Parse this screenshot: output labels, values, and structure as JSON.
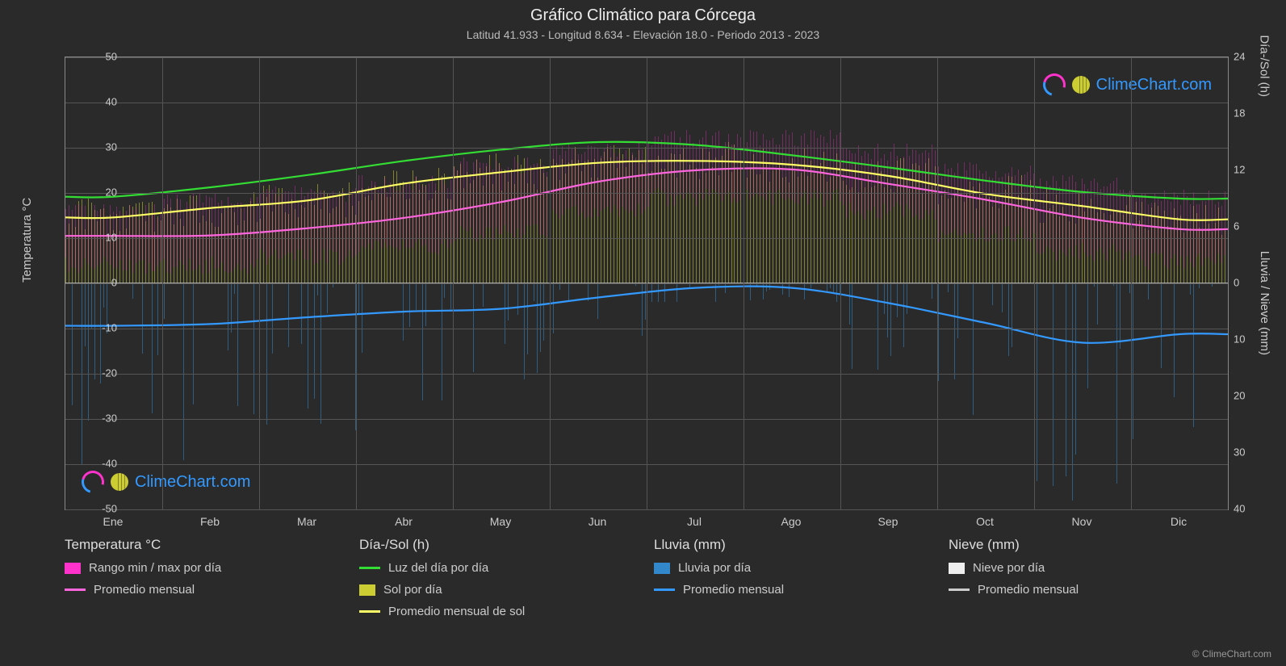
{
  "title": "Gráfico Climático para Córcega",
  "subtitle": "Latitud 41.933 - Longitud 8.634 - Elevación 18.0 - Periodo 2013 - 2023",
  "watermark_text": "ClimeChart.com",
  "copyright": "© ClimeChart.com",
  "axes": {
    "left_label": "Temperatura °C",
    "right_label_top": "Día-/Sol (h)",
    "right_label_bottom": "Lluvia / Nieve (mm)",
    "left_min": -50,
    "left_max": 50,
    "left_step": 10,
    "right_top_min": 0,
    "right_top_max": 24,
    "right_top_step": 6,
    "right_bottom_min": 0,
    "right_bottom_max": 40,
    "right_bottom_step": 10,
    "months": [
      "Ene",
      "Feb",
      "Mar",
      "Abr",
      "May",
      "Jun",
      "Jul",
      "Ago",
      "Sep",
      "Oct",
      "Nov",
      "Dic"
    ]
  },
  "colors": {
    "bg": "#2a2a2a",
    "grid": "#555555",
    "border": "#888888",
    "text": "#cccccc",
    "title_text": "#eeeeee",
    "temp_range": "#ff33cc",
    "temp_avg": "#ff66dd",
    "daylight": "#33dd33",
    "sun_bar": "#cccc33",
    "sun_avg": "#ffff66",
    "rain_bar": "#3388cc",
    "rain_avg": "#3399ff",
    "snow_bar": "#eeeeee",
    "snow_avg": "#cccccc",
    "brand": "#3399ff"
  },
  "series": {
    "daylight_h": [
      9.2,
      10.2,
      11.5,
      13.0,
      14.2,
      15.0,
      14.7,
      13.6,
      12.3,
      10.9,
      9.7,
      9.0
    ],
    "sunshine_avg_h": [
      7.0,
      8.0,
      8.8,
      10.6,
      11.8,
      12.8,
      13.0,
      12.6,
      11.4,
      9.5,
      8.2,
      6.8
    ],
    "temp_avg_c": [
      10.5,
      10.6,
      12.2,
      14.5,
      18.0,
      22.5,
      25.0,
      25.2,
      22.0,
      18.5,
      14.5,
      12.0
    ],
    "temp_min_c": [
      4,
      4,
      6,
      8,
      11,
      16,
      19,
      19,
      16,
      11,
      7,
      5
    ],
    "temp_max_c": [
      16,
      18,
      20,
      22,
      26,
      29,
      32,
      32,
      29,
      25,
      22,
      19
    ],
    "rain_avg_mm": [
      7.5,
      7.2,
      6.0,
      5.0,
      4.5,
      2.5,
      0.8,
      0.8,
      3.5,
      7.0,
      10.5,
      9.0
    ],
    "snow_avg_mm": [
      0,
      0,
      0,
      0,
      0,
      0,
      0,
      0,
      0,
      0,
      0,
      0
    ],
    "sun_daily_h_spread": 4.0,
    "rain_daily_max_mm": 35
  },
  "legend": {
    "temp_title": "Temperatura °C",
    "temp_range": "Rango min / max por día",
    "temp_avg": "Promedio mensual",
    "daysun_title": "Día-/Sol (h)",
    "daylight": "Luz del día por día",
    "sun_bar": "Sol por día",
    "sun_avg": "Promedio mensual de sol",
    "rain_title": "Lluvia (mm)",
    "rain_bar": "Lluvia por día",
    "rain_avg": "Promedio mensual",
    "snow_title": "Nieve (mm)",
    "snow_bar": "Nieve por día",
    "snow_avg": "Promedio mensual"
  }
}
